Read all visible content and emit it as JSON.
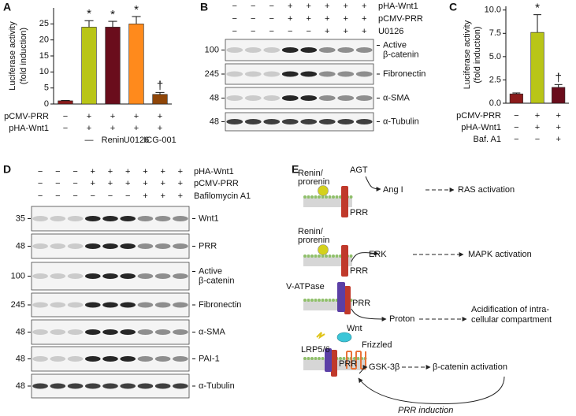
{
  "chart_data": [
    {
      "type": "bar",
      "panel": "A",
      "y_label": [
        "Luciferase activity",
        "(fold induction)"
      ],
      "categories": [
        null,
        null,
        null,
        null,
        null
      ],
      "values": [
        1,
        24,
        24,
        25,
        3
      ],
      "errors": [
        0.1,
        2,
        1.8,
        2.3,
        0.6
      ],
      "colors": [
        "#8c1b1b",
        "#b9c517",
        "#6a0d1c",
        "#ff8a1c",
        "#8f4608"
      ],
      "annotations": [
        null,
        "*",
        "*",
        "*",
        "†"
      ],
      "ylim": [
        0,
        30
      ],
      "yticks": [
        0,
        5,
        10,
        15,
        20,
        25
      ],
      "conditions": [
        {
          "name": "pCMV-PRR",
          "signs": [
            "−",
            "+",
            "+",
            "+",
            "+"
          ]
        },
        {
          "name": "pHA-Wnt1",
          "signs": [
            "−",
            "+",
            "+",
            "+",
            "+"
          ]
        },
        {
          "name": null,
          "signs": [
            null,
            "—",
            "Renin",
            "U0126",
            "ICG-001"
          ]
        }
      ]
    },
    {
      "type": "bar",
      "panel": "C",
      "y_label": [
        "Luciferase activity",
        "(fold induction)"
      ],
      "categories": [
        null,
        null,
        null
      ],
      "values": [
        1,
        7.6,
        1.7
      ],
      "errors": [
        0.1,
        1.9,
        0.3
      ],
      "colors": [
        "#8c1b1b",
        "#b9c517",
        "#6a0d1c"
      ],
      "annotations": [
        null,
        "*",
        "†"
      ],
      "ylim": [
        0,
        10.4
      ],
      "yticks": [
        {
          "value": 0,
          "label": "0.0"
        },
        {
          "value": 2.5,
          "label": "2.5"
        },
        {
          "value": 5,
          "label": "5.0"
        },
        {
          "value": 7.5,
          "label": "7.5"
        },
        {
          "value": 10,
          "label": "10.0"
        }
      ],
      "conditions": [
        {
          "name": "pCMV-PRR",
          "signs": [
            "−",
            "+",
            "+"
          ]
        },
        {
          "name": "pHA-Wnt1",
          "signs": [
            "−",
            "+",
            "+"
          ]
        },
        {
          "name": "Baf. A1",
          "signs": [
            "−",
            "−",
            "+"
          ]
        }
      ]
    }
  ],
  "blot_b": {
    "panel": "B",
    "conditions": [
      {
        "name": "pHA-Wnt1",
        "signs": [
          "−",
          "−",
          "−",
          "+",
          "+",
          "+",
          "+",
          "+"
        ]
      },
      {
        "name": "pCMV-PRR",
        "signs": [
          "−",
          "−",
          "−",
          "+",
          "+",
          "+",
          "+",
          "+"
        ]
      },
      {
        "name": "U0126",
        "signs": [
          "−",
          "−",
          "−",
          "−",
          "−",
          "+",
          "+",
          "+"
        ]
      }
    ],
    "bands": [
      {
        "marker": 100,
        "label": [
          "Active",
          "β-catenin"
        ]
      },
      {
        "marker": 245,
        "label": [
          "Fibronectin"
        ]
      },
      {
        "marker": 48,
        "label": [
          "α-SMA"
        ]
      },
      {
        "marker": 48,
        "label": [
          "α-Tubulin"
        ]
      }
    ]
  },
  "blot_d": {
    "panel": "D",
    "conditions": [
      {
        "name": "pHA-Wnt1",
        "signs": [
          "−",
          "−",
          "−",
          "+",
          "+",
          "+",
          "+",
          "+",
          "+"
        ]
      },
      {
        "name": "pCMV-PRR",
        "signs": [
          "−",
          "−",
          "−",
          "+",
          "+",
          "+",
          "+",
          "+",
          "+"
        ]
      },
      {
        "name": "Bafilomycin A1",
        "signs": [
          "−",
          "−",
          "−",
          "−",
          "−",
          "−",
          "+",
          "+",
          "+"
        ]
      }
    ],
    "bands": [
      {
        "marker": 35,
        "label": [
          "Wnt1"
        ]
      },
      {
        "marker": 48,
        "label": [
          "PRR"
        ]
      },
      {
        "marker": 100,
        "label": [
          "Active",
          "β-catenin"
        ]
      },
      {
        "marker": 245,
        "label": [
          "Fibronectin"
        ]
      },
      {
        "marker": 48,
        "label": [
          "α-SMA"
        ]
      },
      {
        "marker": 48,
        "label": [
          "PAI-1"
        ]
      },
      {
        "marker": 48,
        "label": [
          "α-Tubulin"
        ]
      }
    ]
  },
  "diagram": {
    "panel": "E",
    "rows": [
      {
        "ligand": [
          "Renin/",
          "prorenin"
        ],
        "substrate": "AGT",
        "receptor": "PRR",
        "product": "Ang I",
        "outcome": [
          "RAS activation"
        ]
      },
      {
        "ligand": [
          "Renin/",
          "prorenin"
        ],
        "receptor": "PRR",
        "product": "ERK",
        "outcome": [
          "MAPK activation"
        ]
      },
      {
        "ligand": [
          "V-ATPase"
        ],
        "receptor": "PRR",
        "product": "Proton",
        "outcome": [
          "Acidification of intra-",
          "cellular compartment"
        ]
      },
      {
        "ligand": [
          "Wnt"
        ],
        "coreceptors": [
          "Frizzled",
          "LRP5/6"
        ],
        "receptor": "PRR",
        "product": "GSK-3β",
        "outcome": [
          "β-catenin activation"
        ]
      }
    ],
    "feedback": "PRR induction"
  }
}
